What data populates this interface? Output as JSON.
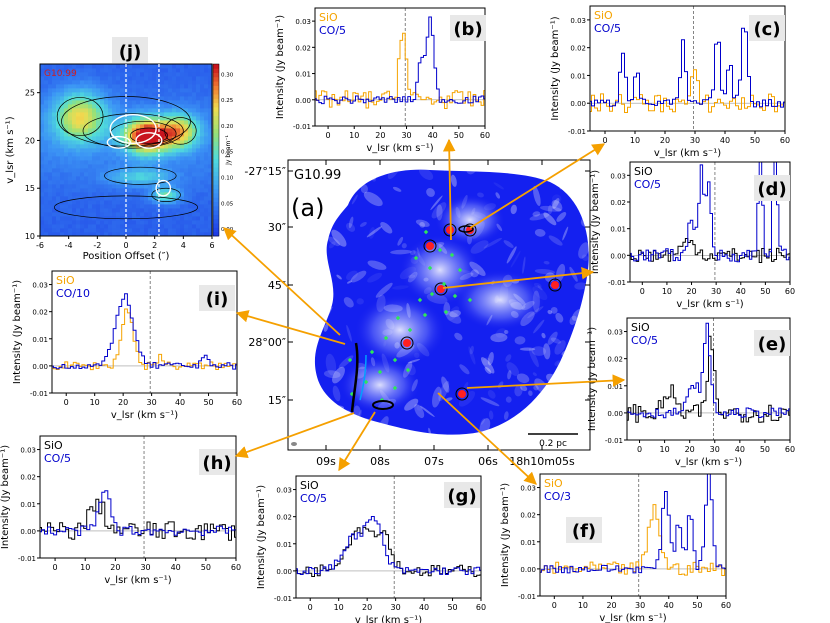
{
  "figure": {
    "source_name": "G10.99",
    "scalebar_label": "0.2 pc",
    "colorbar_label": "Jy beam⁻¹",
    "colorbar_ticks": [
      "0.00",
      "0.05",
      "0.10",
      "0.15",
      "0.20",
      "0.25",
      "0.30"
    ],
    "colors": {
      "sio_orange": "#f5a300",
      "sio_black": "#000000",
      "co_blue": "#0000cc",
      "arrow": "#f5a000",
      "panel_label_bg": "#e8e8e8"
    }
  },
  "chart_data": [
    {
      "id": "j",
      "type": "heatmap",
      "panel_label": "(j)",
      "title": "G10.99",
      "xlabel": "Position Offset (″)",
      "ylabel": "v_lsr (km s⁻¹)",
      "xlim": [
        -6,
        6
      ],
      "ylim": [
        10,
        28
      ],
      "xticks": [
        "-6",
        "-4",
        "-2",
        "0",
        "2",
        "4",
        "6"
      ],
      "yticks": [
        "10",
        "15",
        "20",
        "25"
      ],
      "dashed_offsets": [
        0,
        2.3
      ],
      "color_range": [
        0.0,
        0.3
      ],
      "intensity_peaks": [
        {
          "x": 1.5,
          "y": 20.5,
          "amp": 0.29,
          "sx": 1.6,
          "sy": 1.8
        },
        {
          "x": -3.2,
          "y": 22.5,
          "amp": 0.18,
          "sx": 1.8,
          "sy": 2.6
        },
        {
          "x": 3.8,
          "y": 21.0,
          "amp": 0.17,
          "sx": 1.3,
          "sy": 1.8
        },
        {
          "x": 1.0,
          "y": 16.2,
          "amp": 0.08,
          "sx": 2.2,
          "sy": 0.9
        },
        {
          "x": 2.8,
          "y": 14.3,
          "amp": 0.12,
          "sx": 1.0,
          "sy": 0.8
        }
      ]
    },
    {
      "id": "a",
      "type": "image",
      "panel_label": "(a)",
      "title": "G10.99",
      "dec_ticks": [
        "-27°15″",
        "30″",
        "45″",
        "28°00″",
        "15″"
      ],
      "ra_ticks": [
        "09s",
        "08s",
        "07s",
        "06s",
        "18h10m05s"
      ],
      "scalebar": "0.2 pc"
    },
    {
      "id": "b",
      "type": "line",
      "panel_label": "(b)",
      "series_names": [
        "SiO",
        "CO/5"
      ],
      "sio_color": "orange",
      "xlabel": "v_lsr (km s⁻¹)",
      "ylabel": "Intensity (Jy beam⁻¹)",
      "xlim": [
        -5,
        60
      ],
      "ylim": [
        -0.01,
        0.035
      ],
      "xticks": [
        0,
        10,
        20,
        30,
        40,
        50,
        60
      ],
      "yticks": [
        -0.01,
        0.0,
        0.01,
        0.02,
        0.03
      ],
      "vline": 29.5,
      "sio": {
        "noise": 0.0035,
        "lines": [
          {
            "v": 28.5,
            "a": 0.028,
            "w": 1.3
          }
        ]
      },
      "co": {
        "noise": 0.0015,
        "lines": [
          {
            "v": 35.5,
            "a": 0.016,
            "w": 1.0
          },
          {
            "v": 39.0,
            "a": 0.031,
            "w": 1.4
          }
        ]
      }
    },
    {
      "id": "c",
      "type": "line",
      "panel_label": "(c)",
      "series_names": [
        "SiO",
        "CO/5"
      ],
      "sio_color": "orange",
      "xlabel": "v_lsr (km s⁻¹)",
      "ylabel": "Intensity (Jy beam⁻¹)",
      "xlim": [
        -5,
        60
      ],
      "ylim": [
        -0.01,
        0.035
      ],
      "xticks": [
        0,
        10,
        20,
        30,
        40,
        50,
        60
      ],
      "yticks": [
        -0.01,
        0.0,
        0.01,
        0.02,
        0.03
      ],
      "vline": 29.5,
      "sio": {
        "noise": 0.0035,
        "lines": [
          {
            "v": 29.8,
            "a": 0.01,
            "w": 1.0
          }
        ]
      },
      "co": {
        "noise": 0.0015,
        "lines": [
          {
            "v": 6.0,
            "a": 0.019,
            "w": 0.9
          },
          {
            "v": 10.5,
            "a": 0.013,
            "w": 0.8
          },
          {
            "v": 26.0,
            "a": 0.022,
            "w": 0.8
          },
          {
            "v": 37.5,
            "a": 0.024,
            "w": 0.9
          },
          {
            "v": 41.5,
            "a": 0.015,
            "w": 0.8
          },
          {
            "v": 46.5,
            "a": 0.03,
            "w": 1.0
          }
        ]
      }
    },
    {
      "id": "d",
      "type": "line",
      "panel_label": "(d)",
      "series_names": [
        "SiO",
        "CO/5"
      ],
      "sio_color": "black",
      "xlabel": "v_lsr (km s⁻¹)",
      "ylabel": "Intensity (Jy beam⁻¹)",
      "xlim": [
        -5,
        60
      ],
      "ylim": [
        -0.01,
        0.035
      ],
      "xticks": [
        0,
        10,
        20,
        30,
        40,
        50,
        60
      ],
      "yticks": [
        -0.01,
        0.0,
        0.01,
        0.02,
        0.03
      ],
      "vline": 29.5,
      "sio": {
        "noise": 0.0028,
        "lines": [
          {
            "v": 19.0,
            "a": 0.005,
            "w": 3.0
          }
        ]
      },
      "co": {
        "noise": 0.0025,
        "lines": [
          {
            "v": 20.0,
            "a": 0.015,
            "w": 1.2
          },
          {
            "v": 24.0,
            "a": 0.035,
            "w": 1.0
          },
          {
            "v": 27.0,
            "a": 0.025,
            "w": 1.0
          },
          {
            "v": 48.0,
            "a": 0.035,
            "w": 0.9
          },
          {
            "v": 54.0,
            "a": 0.035,
            "w": 0.9
          }
        ]
      }
    },
    {
      "id": "e",
      "type": "line",
      "panel_label": "(e)",
      "series_names": [
        "SiO",
        "CO/5"
      ],
      "sio_color": "black",
      "xlabel": "v_lsr (km s⁻¹)",
      "ylabel": "Intensity (Jy beam⁻¹)",
      "xlim": [
        -5,
        60
      ],
      "ylim": [
        -0.01,
        0.035
      ],
      "xticks": [
        0,
        10,
        20,
        30,
        40,
        50,
        60
      ],
      "yticks": [
        -0.01,
        0.0,
        0.01,
        0.02,
        0.03
      ],
      "vline": 29.5,
      "sio": {
        "noise": 0.0035,
        "lines": [
          {
            "v": 28.5,
            "a": 0.028,
            "w": 1.2
          },
          {
            "v": 12.0,
            "a": 0.008,
            "w": 2.0
          }
        ]
      },
      "co": {
        "noise": 0.0018,
        "lines": [
          {
            "v": 22.0,
            "a": 0.01,
            "w": 2.5
          },
          {
            "v": 27.0,
            "a": 0.03,
            "w": 1.3
          }
        ]
      }
    },
    {
      "id": "f",
      "type": "line",
      "panel_label": "(f)",
      "series_names": [
        "SiO",
        "CO/3"
      ],
      "sio_color": "orange",
      "xlabel": "v_lsr (km s⁻¹)",
      "ylabel": "Intensity (Jy beam⁻¹)",
      "xlim": [
        -5,
        60
      ],
      "ylim": [
        -0.01,
        0.035
      ],
      "xticks": [
        0,
        10,
        20,
        30,
        40,
        50,
        60
      ],
      "yticks": [
        -0.01,
        0.0,
        0.01,
        0.02,
        0.03
      ],
      "vline": 29.5,
      "sio": {
        "noise": 0.0025,
        "lines": [
          {
            "v": 35.0,
            "a": 0.022,
            "w": 2.0
          }
        ]
      },
      "co": {
        "noise": 0.0015,
        "lines": [
          {
            "v": 39.0,
            "a": 0.028,
            "w": 1.3
          },
          {
            "v": 43.5,
            "a": 0.018,
            "w": 1.0
          },
          {
            "v": 47.5,
            "a": 0.022,
            "w": 1.0
          },
          {
            "v": 54.0,
            "a": 0.035,
            "w": 1.2
          }
        ]
      }
    },
    {
      "id": "g",
      "type": "line",
      "panel_label": "(g)",
      "series_names": [
        "SiO",
        "CO/5"
      ],
      "sio_color": "black",
      "xlabel": "v_lsr (km s⁻¹)",
      "ylabel": "Intensity (Jy beam⁻¹)",
      "xlim": [
        -5,
        60
      ],
      "ylim": [
        -0.01,
        0.035
      ],
      "xticks": [
        0,
        10,
        20,
        30,
        40,
        50,
        60
      ],
      "yticks": [
        -0.01,
        0.0,
        0.01,
        0.02,
        0.03
      ],
      "vline": 29.5,
      "sio": {
        "noise": 0.0022,
        "lines": [
          {
            "v": 18.0,
            "a": 0.016,
            "w": 5.0
          },
          {
            "v": 26.0,
            "a": 0.01,
            "w": 2.5
          }
        ]
      },
      "co": {
        "noise": 0.0015,
        "lines": [
          {
            "v": 15.0,
            "a": 0.012,
            "w": 3.5
          },
          {
            "v": 22.5,
            "a": 0.018,
            "w": 3.0
          }
        ]
      }
    },
    {
      "id": "h",
      "type": "line",
      "panel_label": "(h)",
      "series_names": [
        "SiO",
        "CO/5"
      ],
      "sio_color": "black",
      "xlabel": "v_lsr (km s⁻¹)",
      "ylabel": "Intensity (Jy beam⁻¹)",
      "xlim": [
        -5,
        60
      ],
      "ylim": [
        -0.01,
        0.035
      ],
      "xticks": [
        0,
        10,
        20,
        30,
        40,
        50,
        60
      ],
      "yticks": [
        -0.01,
        0.0,
        0.01,
        0.02,
        0.03
      ],
      "vline": 29.5,
      "sio": {
        "noise": 0.0035,
        "lines": [
          {
            "v": 14.0,
            "a": 0.01,
            "w": 2.5
          }
        ]
      },
      "co": {
        "noise": 0.0018,
        "lines": [
          {
            "v": 16.5,
            "a": 0.015,
            "w": 1.8
          }
        ]
      }
    },
    {
      "id": "i",
      "type": "line",
      "panel_label": "(i)",
      "series_names": [
        "SiO",
        "CO/10"
      ],
      "sio_color": "orange",
      "xlabel": "v_lsr (km s⁻¹)",
      "ylabel": "Intensity (Jy beam⁻¹)",
      "xlim": [
        -5,
        60
      ],
      "ylim": [
        -0.01,
        0.035
      ],
      "xticks": [
        0,
        10,
        20,
        30,
        40,
        50,
        60
      ],
      "yticks": [
        -0.01,
        0.0,
        0.01,
        0.02,
        0.03
      ],
      "vline": 29.5,
      "sio": {
        "noise": 0.0015,
        "lines": [
          {
            "v": 21.5,
            "a": 0.021,
            "w": 2.0
          },
          {
            "v": 33.0,
            "a": 0.004,
            "w": 1.0
          }
        ]
      },
      "co": {
        "noise": 0.0012,
        "lines": [
          {
            "v": 20.5,
            "a": 0.026,
            "w": 3.0
          },
          {
            "v": 49.0,
            "a": 0.005,
            "w": 1.0
          }
        ]
      }
    }
  ]
}
